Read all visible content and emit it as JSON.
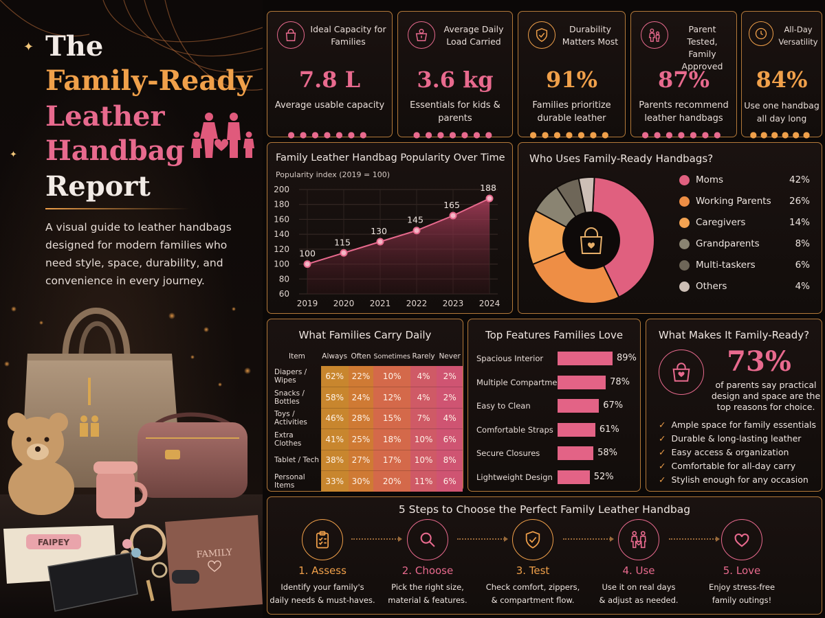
{
  "hero": {
    "title_line1": "The",
    "title_line2": "Family-Ready",
    "title_line3": "Leather",
    "title_line4": "Handbag",
    "title_line5": "Report",
    "description": "A visual guide to leather handbags designed for modern families who need style, space, durability, and convenience in every journey.",
    "wipes_label": "FAIPEY",
    "notebook_label": "FAMILY"
  },
  "stats": [
    {
      "label": "Ideal Capacity for Families",
      "value": "7.8 L",
      "sub": "Average usable capacity",
      "color": "#e86a8e",
      "icon": "handbag-icon"
    },
    {
      "label": "Average Daily Load Carried",
      "value": "3.6 kg",
      "sub": "Essentials for kids & parents",
      "color": "#e86a8e",
      "icon": "scale-icon"
    },
    {
      "label": "Durability Matters Most",
      "value": "91%",
      "sub": "Families prioritize durable leather",
      "color": "#f0a04a",
      "icon": "shield-check-icon"
    },
    {
      "label": "Parent Tested, Family Approved",
      "value": "87%",
      "sub": "Parents recommend leather handbags",
      "color": "#e86a8e",
      "icon": "family-icon"
    },
    {
      "label": "All-Day Versatility",
      "value": "84%",
      "sub": "Use one handbag all day long",
      "color": "#f0a04a",
      "icon": "clock-icon"
    }
  ],
  "chart_data": [
    {
      "type": "area",
      "title": "Family Leather Handbag Popularity Over Time",
      "subtitle": "Popularity index (2019 = 100)",
      "x": [
        "2019",
        "2020",
        "2021",
        "2022",
        "2023",
        "2024"
      ],
      "values": [
        100,
        115,
        130,
        145,
        165,
        188
      ],
      "ylim": [
        60,
        200
      ],
      "yticks": [
        60,
        80,
        100,
        120,
        140,
        160,
        180,
        200
      ],
      "grid": true,
      "color": "#e86a8e"
    },
    {
      "type": "pie",
      "title": "Who Uses Family-Ready Handbags?",
      "legend_position": "right",
      "slices": [
        {
          "name": "Moms",
          "value": 42,
          "label": "42%",
          "color": "#e0607f"
        },
        {
          "name": "Working Parents",
          "value": 26,
          "label": "26%",
          "color": "#ee8e45"
        },
        {
          "name": "Caregivers",
          "value": 14,
          "label": "14%",
          "color": "#f2a252"
        },
        {
          "name": "Grandparents",
          "value": 8,
          "label": "8%",
          "color": "#8a8472"
        },
        {
          "name": "Multi-taskers",
          "value": 6,
          "label": "6%",
          "color": "#6e6658"
        },
        {
          "name": "Others",
          "value": 4,
          "label": "4%",
          "color": "#cdbfb6"
        }
      ]
    },
    {
      "type": "table",
      "title": "What Families Carry Daily",
      "columns": [
        "Item",
        "Always",
        "Often",
        "Sometimes",
        "Rarely",
        "Never"
      ],
      "rows": [
        {
          "item": "Diapers / Wipes",
          "values": [
            62,
            22,
            10,
            4,
            2
          ]
        },
        {
          "item": "Snacks / Bottles",
          "values": [
            58,
            24,
            12,
            4,
            2
          ]
        },
        {
          "item": "Toys / Activities",
          "values": [
            46,
            28,
            15,
            7,
            4
          ]
        },
        {
          "item": "Extra Clothes",
          "values": [
            41,
            25,
            18,
            10,
            6
          ]
        },
        {
          "item": "Tablet / Tech",
          "values": [
            38,
            27,
            17,
            10,
            8
          ]
        },
        {
          "item": "Personal Items",
          "values": [
            33,
            30,
            20,
            11,
            6
          ]
        }
      ],
      "column_colors": [
        "#c8862e",
        "#cf7a34",
        "#d4694a",
        "#cf5a66",
        "#cf5472"
      ]
    },
    {
      "type": "bar",
      "title": "Top Features Families Love",
      "categories": [
        "Spacious Interior",
        "Multiple Compartments",
        "Easy to Clean",
        "Comfortable Straps",
        "Secure Closures",
        "Lightweight Design"
      ],
      "values": [
        89,
        78,
        67,
        61,
        58,
        52
      ],
      "labels": [
        "89%",
        "78%",
        "67%",
        "61%",
        "58%",
        "52%"
      ],
      "orientation": "horizontal",
      "color": "#e36386"
    }
  ],
  "family_ready": {
    "title": "What Makes It Family-Ready?",
    "big_value": "73%",
    "text": "of parents say practical design and space are the top reasons for choice.",
    "checks": [
      "Ample space for family essentials",
      "Durable & long-lasting leather",
      "Easy access & organization",
      "Comfortable for all-day carry",
      "Stylish enough for any occasion"
    ]
  },
  "steps": {
    "title": "5 Steps to Choose the Perfect Family Leather Handbag",
    "items": [
      {
        "title": "1. Assess",
        "desc1": "Identify your family's",
        "desc2": "daily needs & must-haves.",
        "color": "#f0a04a",
        "icon": "clipboard-icon"
      },
      {
        "title": "2. Choose",
        "desc1": "Pick the right size,",
        "desc2": "material & features.",
        "color": "#e86a8e",
        "icon": "magnifier-icon"
      },
      {
        "title": "3. Test",
        "desc1": "Check comfort, zippers,",
        "desc2": "& compartment flow.",
        "color": "#f0a04a",
        "icon": "shield-check-icon"
      },
      {
        "title": "4. Use",
        "desc1": "Use it on real days",
        "desc2": "& adjust as needed.",
        "color": "#e86a8e",
        "icon": "family-icon"
      },
      {
        "title": "5. Love",
        "desc1": "Enjoy stress-free",
        "desc2": "family outings!",
        "color": "#e86a8e",
        "icon": "heart-icon"
      }
    ]
  }
}
